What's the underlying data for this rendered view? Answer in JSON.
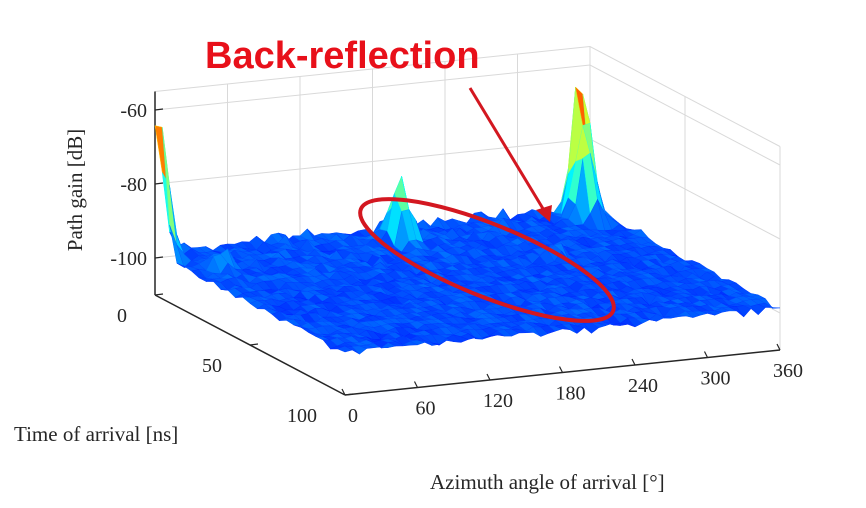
{
  "chart_data": {
    "type": "surface3d",
    "annotation": "Back-reflection",
    "xlabel": "Azimuth angle of arrival [°]",
    "ylabel": "Time of arrival [ns]",
    "zlabel": "Path gain [dB]",
    "x_ticks": [
      "0",
      "60",
      "120",
      "180",
      "240",
      "300",
      "360"
    ],
    "y_ticks": [
      "0",
      "50",
      "100"
    ],
    "z_ticks": [
      "-60",
      "-80",
      "-100"
    ],
    "x_range": [
      0,
      360
    ],
    "y_range": [
      0,
      100
    ],
    "z_range": [
      -110,
      -55
    ],
    "grid": true,
    "colormap": "jet",
    "noise_floor_db": -100,
    "peaks": [
      {
        "azimuth_deg": 0,
        "time_ns": 2,
        "gain_db": -60
      },
      {
        "azimuth_deg": 345,
        "time_ns": 5,
        "gain_db": -60
      },
      {
        "azimuth_deg": 185,
        "time_ns": 12,
        "gain_db": -80
      },
      {
        "azimuth_deg": 340,
        "time_ns": 10,
        "gain_db": -75
      },
      {
        "azimuth_deg": 270,
        "time_ns": 38,
        "gain_db": -95
      },
      {
        "azimuth_deg": 25,
        "time_ns": 18,
        "gain_db": -92
      }
    ]
  },
  "colors": {
    "annotation": "#e8101a",
    "ellipse": "#d31720",
    "axis": "#262626",
    "grid": "#d9d9d9"
  }
}
